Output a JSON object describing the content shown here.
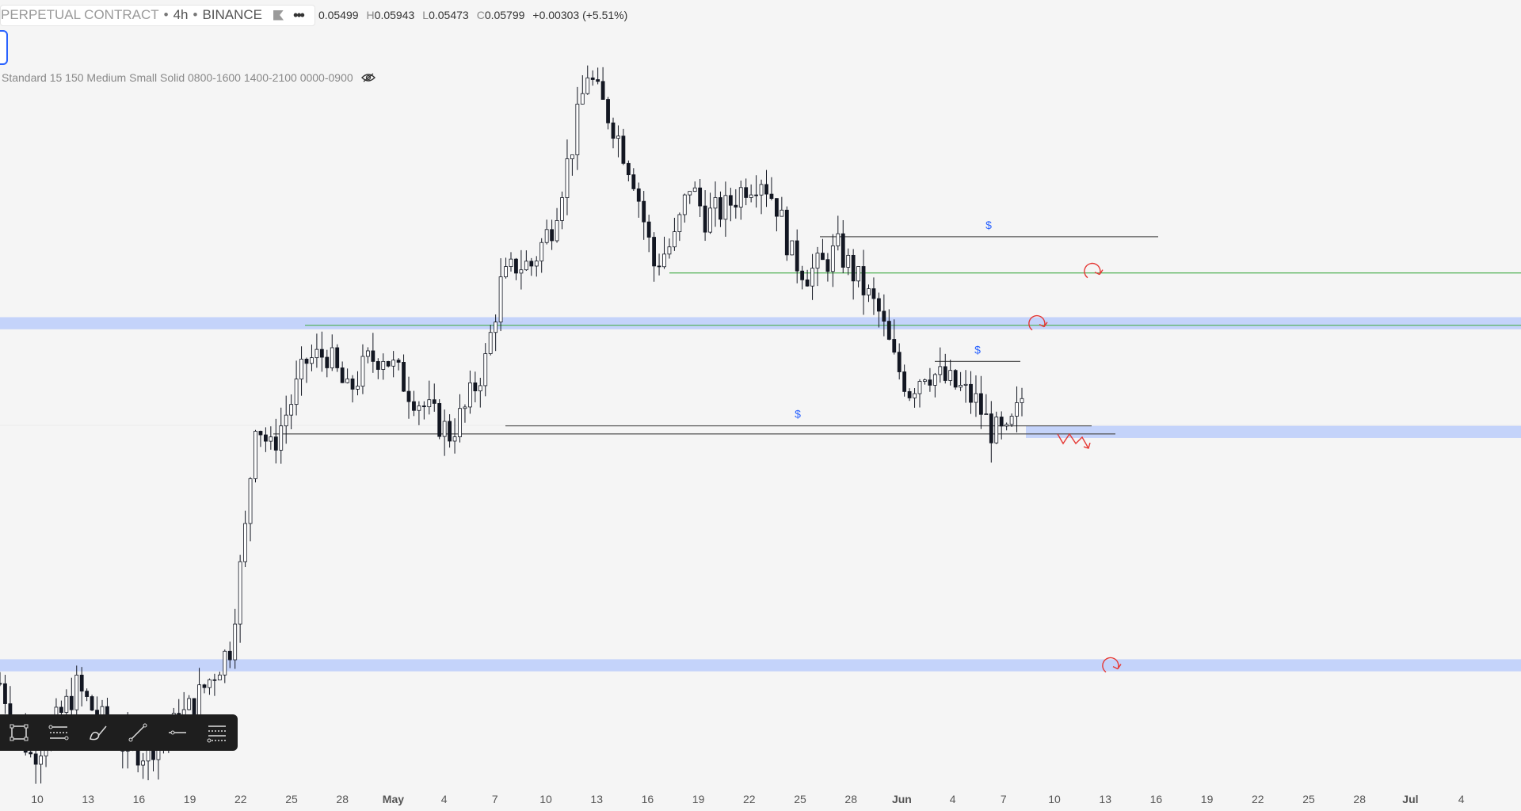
{
  "header": {
    "symbol": "PERPETUAL CONTRACT",
    "sep1": "•",
    "interval": "4h",
    "sep2": "•",
    "exchange": "BINANCE",
    "ohlc": {
      "o_val": "0.05499",
      "h_key": "H",
      "h_val": "0.05943",
      "l_key": "L",
      "l_val": "0.05473",
      "c_key": "C",
      "c_val": "0.05799",
      "change": "+0.00303 (+5.51%)"
    }
  },
  "indicator": {
    "label": "Standard 15 150 Medium Small Solid 0800-1600 1400-2100 0000-0900"
  },
  "toolbar": {
    "tools": [
      "rectangle-icon",
      "parallel-channel-icon",
      "brush-icon",
      "trend-line-icon",
      "horizontal-line-icon",
      "fib-retracement-icon"
    ]
  },
  "colors": {
    "background": "#f5f5f5",
    "zone": "#c4d3fa",
    "support_green": "#4caf50",
    "level_gray": "#555555",
    "marker_blue": "#2962ff",
    "annotation_red": "#e53935",
    "candle": "#131722",
    "toolbar_bg": "#1e1e1e"
  },
  "chart_data": {
    "type": "candlestick",
    "timeframe": "4h",
    "x_ticks": [
      "10",
      "13",
      "16",
      "19",
      "22",
      "25",
      "28",
      "May",
      "4",
      "7",
      "10",
      "13",
      "16",
      "19",
      "22",
      "25",
      "28",
      "Jun",
      "4",
      "7",
      "10",
      "13",
      "16",
      "19",
      "22",
      "25",
      "28",
      "Jul",
      "4"
    ],
    "price_path": [
      [
        0,
        0.0486
      ],
      [
        6,
        0.0468
      ],
      [
        10,
        0.0474
      ],
      [
        15,
        0.0485
      ],
      [
        19,
        0.0478
      ],
      [
        24,
        0.0471
      ],
      [
        28,
        0.0469
      ],
      [
        33,
        0.0474
      ],
      [
        38,
        0.0481
      ],
      [
        41,
        0.0487
      ],
      [
        45,
        0.0495
      ],
      [
        48,
        0.0524
      ],
      [
        50,
        0.0552
      ],
      [
        53,
        0.0544
      ],
      [
        57,
        0.0556
      ],
      [
        60,
        0.0566
      ],
      [
        64,
        0.0568
      ],
      [
        68,
        0.0558
      ],
      [
        72,
        0.0566
      ],
      [
        75,
        0.0568
      ],
      [
        80,
        0.0559
      ],
      [
        85,
        0.0552
      ],
      [
        88,
        0.0548
      ],
      [
        91,
        0.0554
      ],
      [
        95,
        0.0566
      ],
      [
        98,
        0.0585
      ],
      [
        101,
        0.059
      ],
      [
        104,
        0.059
      ],
      [
        108,
        0.06
      ],
      [
        112,
        0.062
      ],
      [
        115,
        0.0638
      ],
      [
        117,
        0.0632
      ],
      [
        120,
        0.0625
      ],
      [
        124,
        0.0612
      ],
      [
        128,
        0.059
      ],
      [
        132,
        0.0596
      ],
      [
        135,
        0.061
      ],
      [
        138,
        0.0602
      ],
      [
        142,
        0.0604
      ],
      [
        146,
        0.061
      ],
      [
        149,
        0.0612
      ],
      [
        152,
        0.0605
      ],
      [
        155,
        0.0592
      ],
      [
        158,
        0.0588
      ],
      [
        161,
        0.059
      ],
      [
        164,
        0.0594
      ],
      [
        168,
        0.0586
      ],
      [
        172,
        0.0578
      ],
      [
        175,
        0.0566
      ],
      [
        178,
        0.0559
      ],
      [
        181,
        0.0564
      ],
      [
        184,
        0.0562
      ],
      [
        188,
        0.0559
      ],
      [
        191,
        0.0556
      ],
      [
        194,
        0.0549
      ],
      [
        197,
        0.0547
      ],
      [
        199,
        0.0553
      ],
      [
        200,
        0.0557
      ]
    ],
    "levels": [
      {
        "name": "$",
        "type": "liquidity",
        "value": 0.0597
      },
      {
        "name": "$",
        "type": "liquidity",
        "value": 0.0566
      },
      {
        "name": "$",
        "type": "liquidity",
        "value": 0.055
      },
      {
        "type": "support",
        "value": 0.0588
      },
      {
        "type": "support",
        "value": 0.0575
      },
      {
        "type": "level",
        "value": 0.0548
      }
    ],
    "zones": [
      {
        "from": 0.0574,
        "to": 0.0577
      },
      {
        "from": 0.0547,
        "to": 0.055
      },
      {
        "from": 0.0489,
        "to": 0.0492
      }
    ],
    "annotations": [
      {
        "type": "reversal-arrow",
        "price": 0.0588
      },
      {
        "type": "reversal-arrow",
        "price": 0.0575
      },
      {
        "type": "down-zigzag-arrow",
        "price": 0.0546
      },
      {
        "type": "reversal-arrow",
        "price": 0.049
      }
    ],
    "ylim": [
      0.046,
      0.0645
    ],
    "grid": false
  }
}
